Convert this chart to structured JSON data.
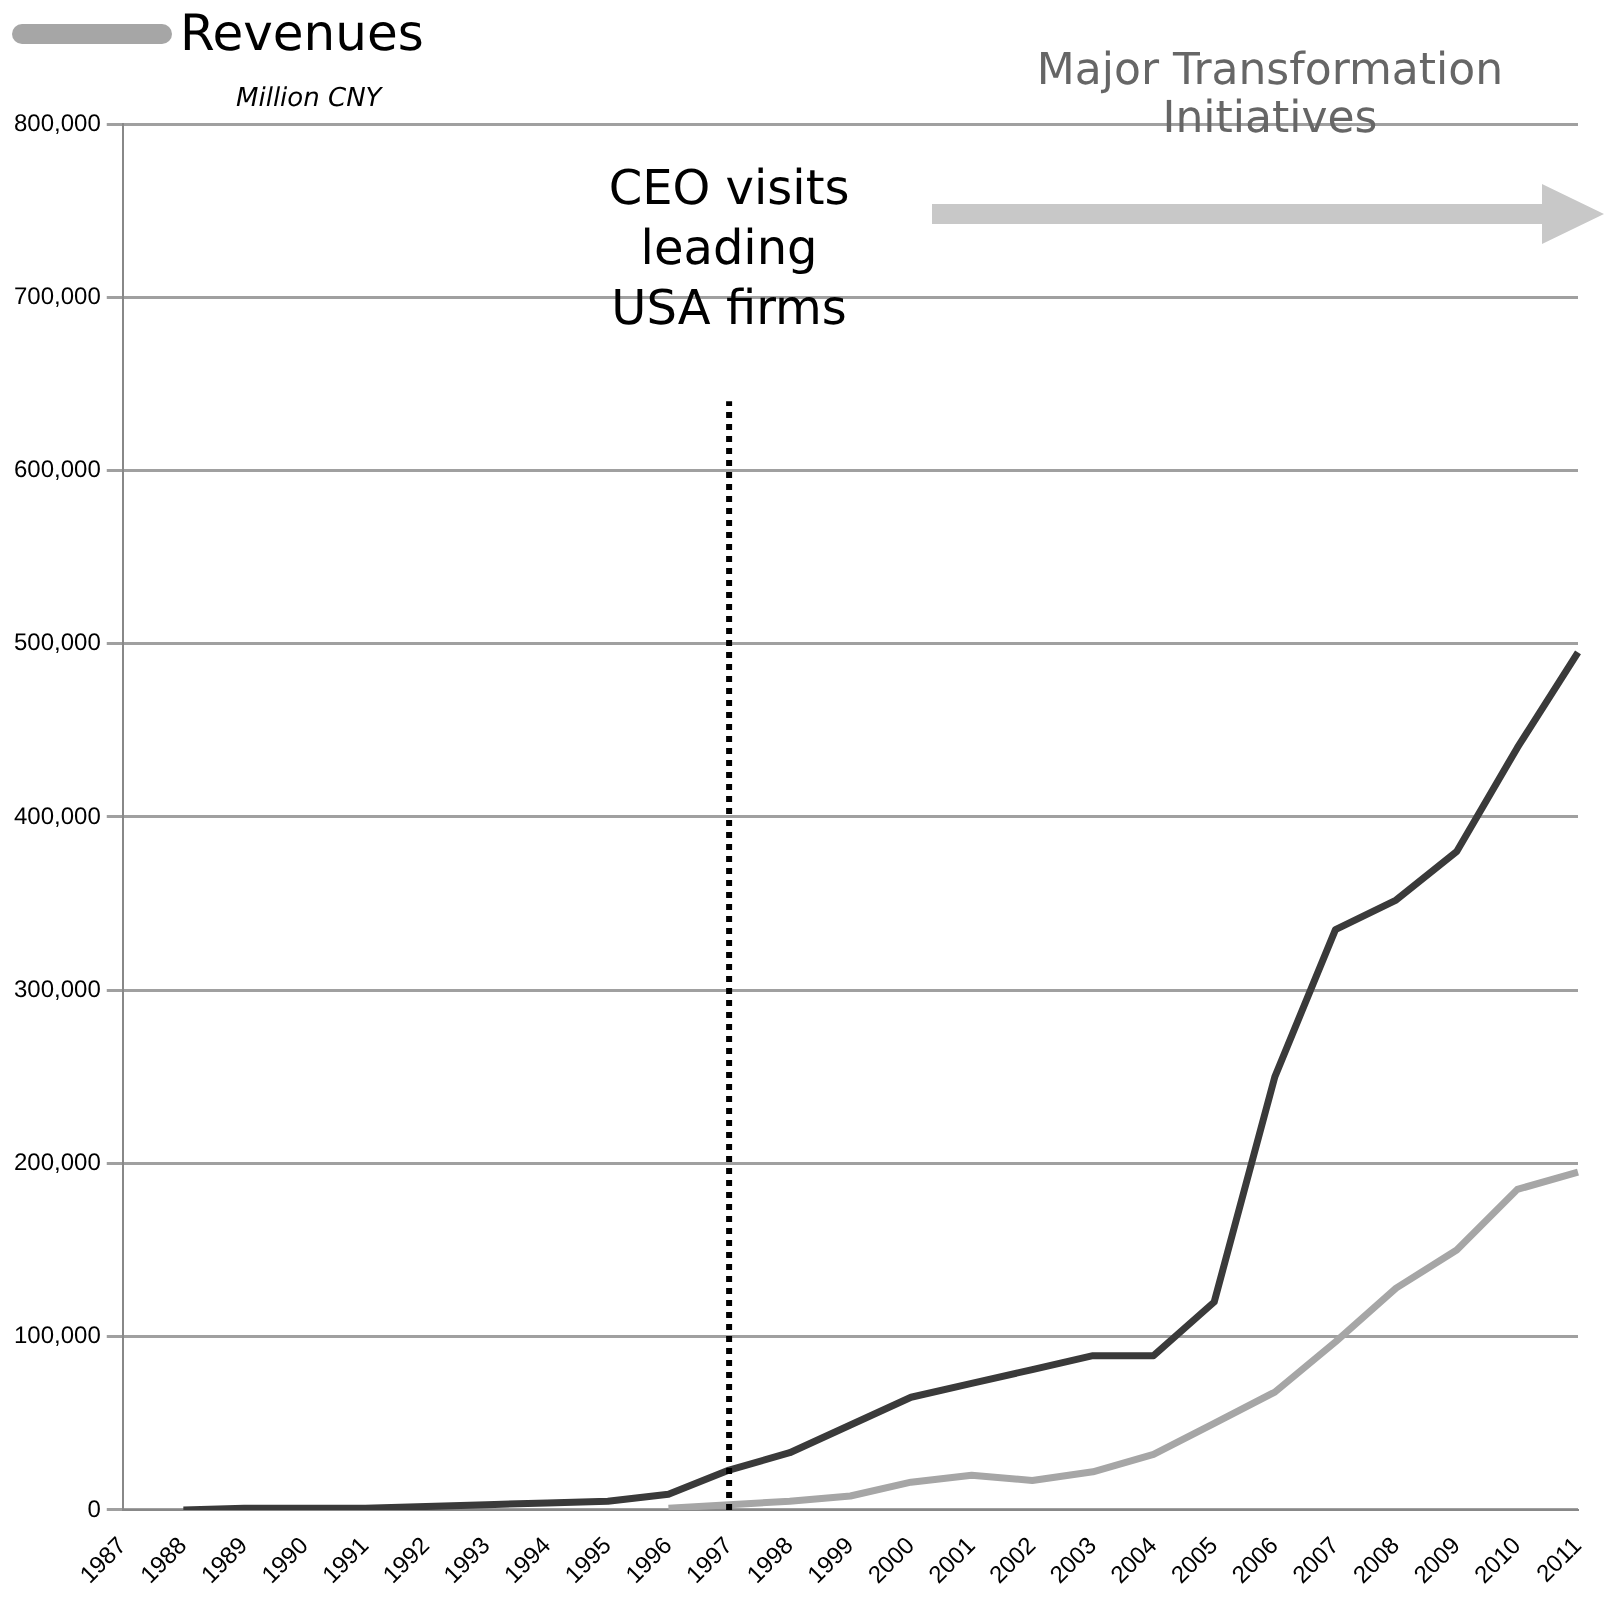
{
  "chart_data": {
    "type": "line",
    "ylabel": "Million CNY",
    "categories": [
      "1987",
      "1988",
      "1989",
      "1990",
      "1991",
      "1992",
      "1993",
      "1994",
      "1995",
      "1996",
      "1997",
      "1998",
      "1999",
      "2000",
      "2001",
      "2002",
      "2003",
      "2004",
      "2005",
      "2006",
      "2007",
      "2008",
      "2009",
      "2010",
      "2011"
    ],
    "series": [
      {
        "color": "#3a3a3a",
        "values": [
          null,
          0,
          1000,
          1000,
          1000,
          2000,
          3000,
          4000,
          5000,
          9000,
          23000,
          33000,
          49000,
          65000,
          73000,
          81000,
          89000,
          89000,
          120000,
          250000,
          335000,
          352000,
          380000,
          440000,
          495000
        ]
      },
      {
        "name": "Revenues",
        "color": "#a6a6a6",
        "values": [
          null,
          null,
          null,
          null,
          null,
          null,
          null,
          null,
          null,
          1000,
          3000,
          5000,
          8000,
          16000,
          20000,
          17000,
          22000,
          32000,
          50000,
          68000,
          97000,
          128000,
          150000,
          185000,
          195000
        ]
      }
    ],
    "ylim": [
      0,
      800000
    ],
    "yticks": [
      0,
      {
        "value": 100000,
        "label": "100,000"
      },
      {
        "value": 200000,
        "label": "200,000"
      },
      {
        "value": 300000,
        "label": "300,000"
      },
      {
        "value": 400000,
        "label": "400,000"
      },
      {
        "value": 500000,
        "label": "500,000"
      },
      {
        "value": 600000,
        "label": "600,000"
      },
      {
        "value": 700000,
        "label": "700,000"
      },
      {
        "value": 800000,
        "label": "800,000"
      }
    ],
    "grid": "y",
    "legend": "top left",
    "marker": "none",
    "line_style": "solid",
    "ref_lines": [
      {
        "axis": "x",
        "value": "1997",
        "label": "CEO visits\nleading\nUSA firms",
        "color": "#000000",
        "line_style": "dotted"
      }
    ],
    "annotations": [
      "Major Transformation\nInitiatives"
    ]
  }
}
